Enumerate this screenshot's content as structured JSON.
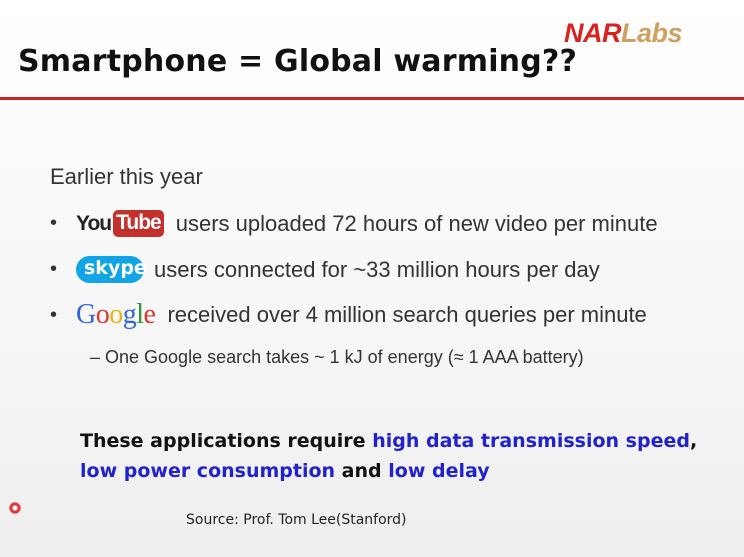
{
  "slide": {
    "title": "Smartphone = Global warming??",
    "logo": {
      "part1": "NAR",
      "part2": "Labs"
    },
    "intro": "Earlier this year",
    "bullets": [
      {
        "brand": {
          "you": "You",
          "tube": "Tube"
        },
        "text": "users uploaded 72 hours of new video per minute"
      },
      {
        "brand": {
          "name": "skype"
        },
        "text": "users connected for ~33 million hours per day"
      },
      {
        "brand": {
          "letters": [
            "G",
            "o",
            "o",
            "g",
            "l",
            "e"
          ]
        },
        "text": "received over 4 million search queries per minute"
      }
    ],
    "sub_bullet": "– One Google search takes ~ 1 kJ of energy (≈ 1 AAA battery)",
    "highlight": {
      "part1": "These applications require ",
      "part2": "high data transmission speed",
      "part3": ", ",
      "part4": "low power consumption",
      "part5": " and ",
      "part6": "low delay"
    },
    "source": "Source: Prof. Tom Lee(Stanford)"
  },
  "colors": {
    "accent_red": "#c8242b",
    "highlight_blue": "#2222cc"
  }
}
